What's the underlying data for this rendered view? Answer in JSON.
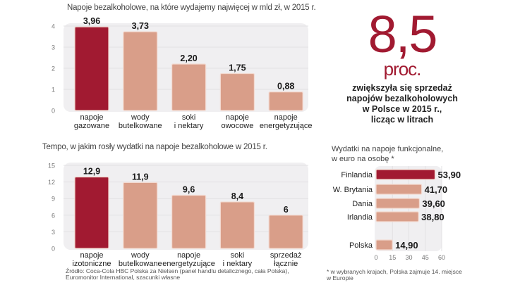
{
  "headline": {
    "value": "8,5",
    "unit": "proc.",
    "description": [
      "zwiększyła się sprzedaż",
      "napojów bezalkoholowych",
      "w Polsce w 2015 r.,",
      "licząc w litrach"
    ]
  },
  "colors": {
    "highlight": "#a11a31",
    "bar": "#d99e89",
    "panel": "#f0eff1",
    "grid": "#e2e1e3"
  },
  "source": "Źródło: Coca-Cola HBC Polska za Nielsen (panel handlu detalicznego, cała Polska), Euromonitor International, szacunki własne",
  "footnote": "* w wybranych krajach, Polska zajmuje 14. miejsce w Europie",
  "chart_data": [
    {
      "type": "bar",
      "title": "Napoje bezalkoholowe, na które wydajemy najwięcej w mld zł, w 2015 r.",
      "categories": [
        [
          "napoje",
          "gazowane"
        ],
        [
          "wody",
          "butelkowane"
        ],
        [
          "soki",
          "i nektary"
        ],
        [
          "napoje",
          "owocowe"
        ],
        [
          "napoje",
          "energetyzujące"
        ]
      ],
      "values": [
        3.96,
        3.73,
        2.2,
        1.75,
        0.88
      ],
      "value_labels": [
        "3,96",
        "3,73",
        "2,20",
        "1,75",
        "0,88"
      ],
      "highlight_index": 0,
      "yticks": [
        0,
        1,
        2,
        3,
        4
      ],
      "ylim": [
        0,
        4
      ],
      "xlabel": "",
      "ylabel": "",
      "grid": true
    },
    {
      "type": "bar",
      "title": "Tempo, w jakim rosły wydatki na napoje bezalkoholowe w 2015 r.",
      "categories": [
        [
          "napoje",
          "izotoniczne"
        ],
        [
          "wody",
          "butelkowane"
        ],
        [
          "napoje",
          "energetyzujące"
        ],
        [
          "soki",
          "i nektary"
        ],
        [
          "sprzedaż",
          "łącznie"
        ]
      ],
      "values": [
        12.9,
        11.9,
        9.6,
        8.4,
        6
      ],
      "value_labels": [
        "12,9",
        "11,9",
        "9,6",
        "8,4",
        "6"
      ],
      "highlight_index": 0,
      "yticks": [
        0,
        3,
        6,
        9,
        12,
        15
      ],
      "ylim": [
        0,
        15
      ],
      "xlabel": "",
      "ylabel": "",
      "grid": true
    },
    {
      "type": "bar",
      "orientation": "horizontal",
      "title": [
        "Wydatki na napoje funkcjonalne,",
        "w euro na osobę *"
      ],
      "categories": [
        "Finlandia",
        "W. Brytania",
        "Dania",
        "Irlandia",
        "Polska"
      ],
      "values": [
        53.9,
        41.7,
        39.6,
        38.8,
        14.9
      ],
      "value_labels": [
        "53,90",
        "41,70",
        "39,60",
        "38,80",
        "14,90"
      ],
      "highlight_index": 0,
      "xticks": [
        0,
        15,
        30,
        45,
        60
      ],
      "xlim": [
        0,
        60
      ],
      "xlabel": "",
      "ylabel": "",
      "grid": true
    }
  ]
}
